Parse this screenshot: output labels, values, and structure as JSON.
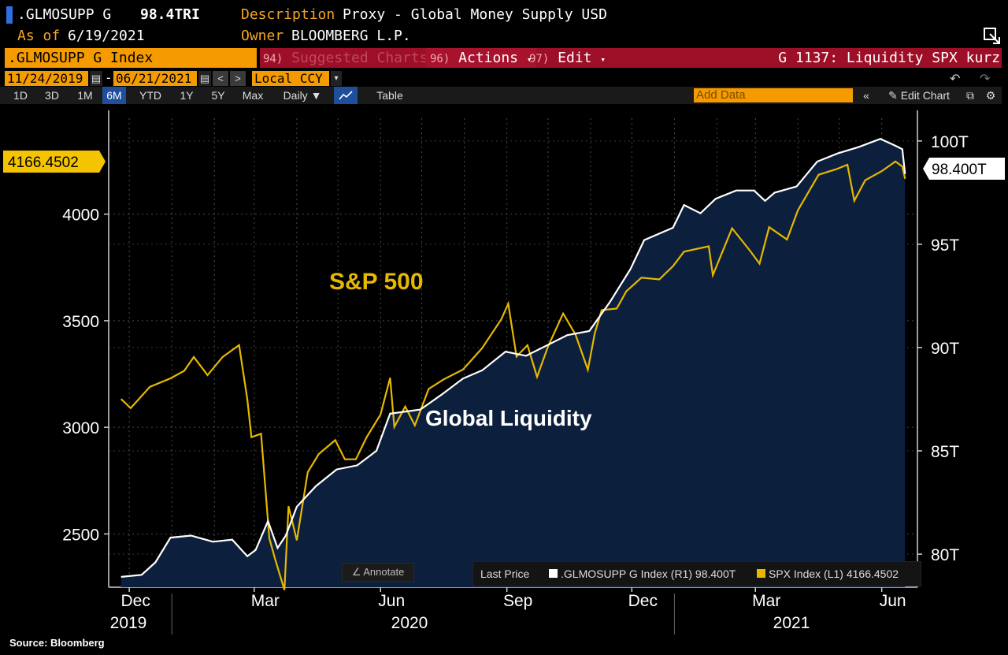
{
  "header": {
    "ticker": ".GLMOSUPP G",
    "value": "98.4TRI",
    "as_of_label": "As of",
    "as_of_date": "6/19/2021",
    "description_label": "Description",
    "description_value": "Proxy - Global Money Supply USD",
    "owner_label": "Owner",
    "owner_value": "BLOOMBERG L.P."
  },
  "toolbar": {
    "security": ".GLMOSUPP G Index",
    "suggested_num": "94)",
    "suggested_label": "Suggested Charts",
    "actions_num": "96)",
    "actions_label": "Actions",
    "edit_num": "97)",
    "edit_label": "Edit",
    "chart_title": "G 1137: Liquidity SPX kurz"
  },
  "daterow": {
    "start": "11/24/2019",
    "sep": "-",
    "end": "06/21/2021",
    "currency": "Local CCY"
  },
  "ranges": [
    "1D",
    "3D",
    "1M",
    "6M",
    "YTD",
    "1Y",
    "5Y",
    "Max"
  ],
  "active_range": "6M",
  "frequency": "Daily",
  "table_label": "Table",
  "add_data_placeholder": "Add Data",
  "edit_chart_label": "Edit Chart",
  "annotate_label": "Annotate",
  "source": "Source: Bloomberg",
  "chart_data": {
    "type": "line",
    "x_tick_labels": [
      "Dec",
      "Mar",
      "Jun",
      "Sep",
      "Dec",
      "Mar",
      "Jun"
    ],
    "year_labels": [
      "2019",
      "2020",
      "2021"
    ],
    "left_axis": {
      "ticks": [
        2500,
        3000,
        3500,
        4000
      ],
      "range": [
        2250,
        4450
      ]
    },
    "right_axis": {
      "ticks": [
        "80T",
        "85T",
        "90T",
        "95T",
        "100T"
      ],
      "tick_values": [
        80,
        85,
        90,
        95,
        100
      ],
      "range": [
        78.4,
        101.1
      ]
    },
    "annotations": {
      "sp500": "S&P 500",
      "liquidity": "Global Liquidity"
    },
    "last_price_left": "4166.4502",
    "last_price_right": "98.400T",
    "legend": {
      "title": "Last Price",
      "items": [
        {
          "name": ".GLMOSUPP G Index",
          "axis": "(R1)",
          "value": "98.400T",
          "color": "#ffffff"
        },
        {
          "name": "SPX Index",
          "axis": "(L1)",
          "value": "4166.4502",
          "color": "#e6b800"
        }
      ]
    },
    "series": [
      {
        "name": "SPX Index",
        "axis": "left",
        "color": "#e6b800",
        "points": [
          [
            "2019-11-25",
            3133
          ],
          [
            "2019-12-02",
            3090
          ],
          [
            "2019-12-16",
            3190
          ],
          [
            "2019-12-31",
            3230
          ],
          [
            "2020-01-10",
            3265
          ],
          [
            "2020-01-17",
            3330
          ],
          [
            "2020-01-27",
            3245
          ],
          [
            "2020-02-07",
            3330
          ],
          [
            "2020-02-19",
            3386
          ],
          [
            "2020-02-25",
            3130
          ],
          [
            "2020-02-28",
            2954
          ],
          [
            "2020-03-06",
            2970
          ],
          [
            "2020-03-12",
            2480
          ],
          [
            "2020-03-16",
            2386
          ],
          [
            "2020-03-23",
            2237
          ],
          [
            "2020-03-26",
            2630
          ],
          [
            "2020-04-01",
            2470
          ],
          [
            "2020-04-09",
            2790
          ],
          [
            "2020-04-17",
            2875
          ],
          [
            "2020-04-29",
            2940
          ],
          [
            "2020-05-06",
            2850
          ],
          [
            "2020-05-14",
            2850
          ],
          [
            "2020-05-22",
            2955
          ],
          [
            "2020-06-01",
            3060
          ],
          [
            "2020-06-08",
            3232
          ],
          [
            "2020-06-11",
            3002
          ],
          [
            "2020-06-19",
            3098
          ],
          [
            "2020-06-26",
            3009
          ],
          [
            "2020-07-06",
            3180
          ],
          [
            "2020-07-17",
            3225
          ],
          [
            "2020-07-31",
            3271
          ],
          [
            "2020-08-14",
            3372
          ],
          [
            "2020-08-28",
            3508
          ],
          [
            "2020-09-02",
            3580
          ],
          [
            "2020-09-08",
            3332
          ],
          [
            "2020-09-16",
            3385
          ],
          [
            "2020-09-23",
            3237
          ],
          [
            "2020-10-01",
            3380
          ],
          [
            "2020-10-12",
            3534
          ],
          [
            "2020-10-21",
            3435
          ],
          [
            "2020-10-30",
            3270
          ],
          [
            "2020-11-04",
            3440
          ],
          [
            "2020-11-09",
            3550
          ],
          [
            "2020-11-20",
            3557
          ],
          [
            "2020-11-27",
            3638
          ],
          [
            "2020-12-08",
            3702
          ],
          [
            "2020-12-21",
            3694
          ],
          [
            "2020-12-31",
            3756
          ],
          [
            "2021-01-08",
            3824
          ],
          [
            "2021-01-26",
            3849
          ],
          [
            "2021-01-29",
            3714
          ],
          [
            "2021-02-12",
            3934
          ],
          [
            "2021-02-25",
            3829
          ],
          [
            "2021-03-04",
            3768
          ],
          [
            "2021-03-11",
            3939
          ],
          [
            "2021-03-24",
            3881
          ],
          [
            "2021-04-01",
            4019
          ],
          [
            "2021-04-16",
            4185
          ],
          [
            "2021-04-29",
            4211
          ],
          [
            "2021-05-07",
            4232
          ],
          [
            "2021-05-12",
            4063
          ],
          [
            "2021-05-20",
            4159
          ],
          [
            "2021-06-01",
            4202
          ],
          [
            "2021-06-11",
            4247
          ],
          [
            "2021-06-16",
            4223
          ],
          [
            "2021-06-18",
            4166
          ]
        ]
      },
      {
        "name": ".GLMOSUPP G Index",
        "axis": "right",
        "color": "#ffffff",
        "points": [
          [
            "2019-11-25",
            78.9
          ],
          [
            "2019-12-10",
            79.0
          ],
          [
            "2019-12-20",
            79.6
          ],
          [
            "2019-12-31",
            80.8
          ],
          [
            "2020-01-15",
            80.9
          ],
          [
            "2020-01-31",
            80.6
          ],
          [
            "2020-02-14",
            80.7
          ],
          [
            "2020-02-25",
            79.9
          ],
          [
            "2020-03-02",
            80.2
          ],
          [
            "2020-03-11",
            81.6
          ],
          [
            "2020-03-18",
            80.3
          ],
          [
            "2020-03-24",
            80.9
          ],
          [
            "2020-04-01",
            82.3
          ],
          [
            "2020-04-15",
            83.3
          ],
          [
            "2020-04-30",
            84.1
          ],
          [
            "2020-05-15",
            84.3
          ],
          [
            "2020-05-29",
            85.0
          ],
          [
            "2020-06-08",
            86.8
          ],
          [
            "2020-06-30",
            87.0
          ],
          [
            "2020-07-15",
            87.7
          ],
          [
            "2020-07-31",
            88.5
          ],
          [
            "2020-08-14",
            88.9
          ],
          [
            "2020-08-31",
            89.8
          ],
          [
            "2020-09-15",
            89.6
          ],
          [
            "2020-09-30",
            90.1
          ],
          [
            "2020-10-15",
            90.6
          ],
          [
            "2020-10-31",
            90.8
          ],
          [
            "2020-11-15",
            92.2
          ],
          [
            "2020-11-30",
            93.8
          ],
          [
            "2020-12-10",
            95.2
          ],
          [
            "2020-12-31",
            95.8
          ],
          [
            "2021-01-08",
            96.9
          ],
          [
            "2021-01-20",
            96.5
          ],
          [
            "2021-01-31",
            97.2
          ],
          [
            "2021-02-15",
            97.6
          ],
          [
            "2021-02-28",
            97.6
          ],
          [
            "2021-03-08",
            97.1
          ],
          [
            "2021-03-15",
            97.5
          ],
          [
            "2021-03-31",
            97.8
          ],
          [
            "2021-04-15",
            99.0
          ],
          [
            "2021-04-30",
            99.4
          ],
          [
            "2021-05-15",
            99.7
          ],
          [
            "2021-05-31",
            100.1
          ],
          [
            "2021-06-10",
            99.8
          ],
          [
            "2021-06-16",
            99.6
          ],
          [
            "2021-06-18",
            98.4
          ]
        ]
      }
    ]
  }
}
